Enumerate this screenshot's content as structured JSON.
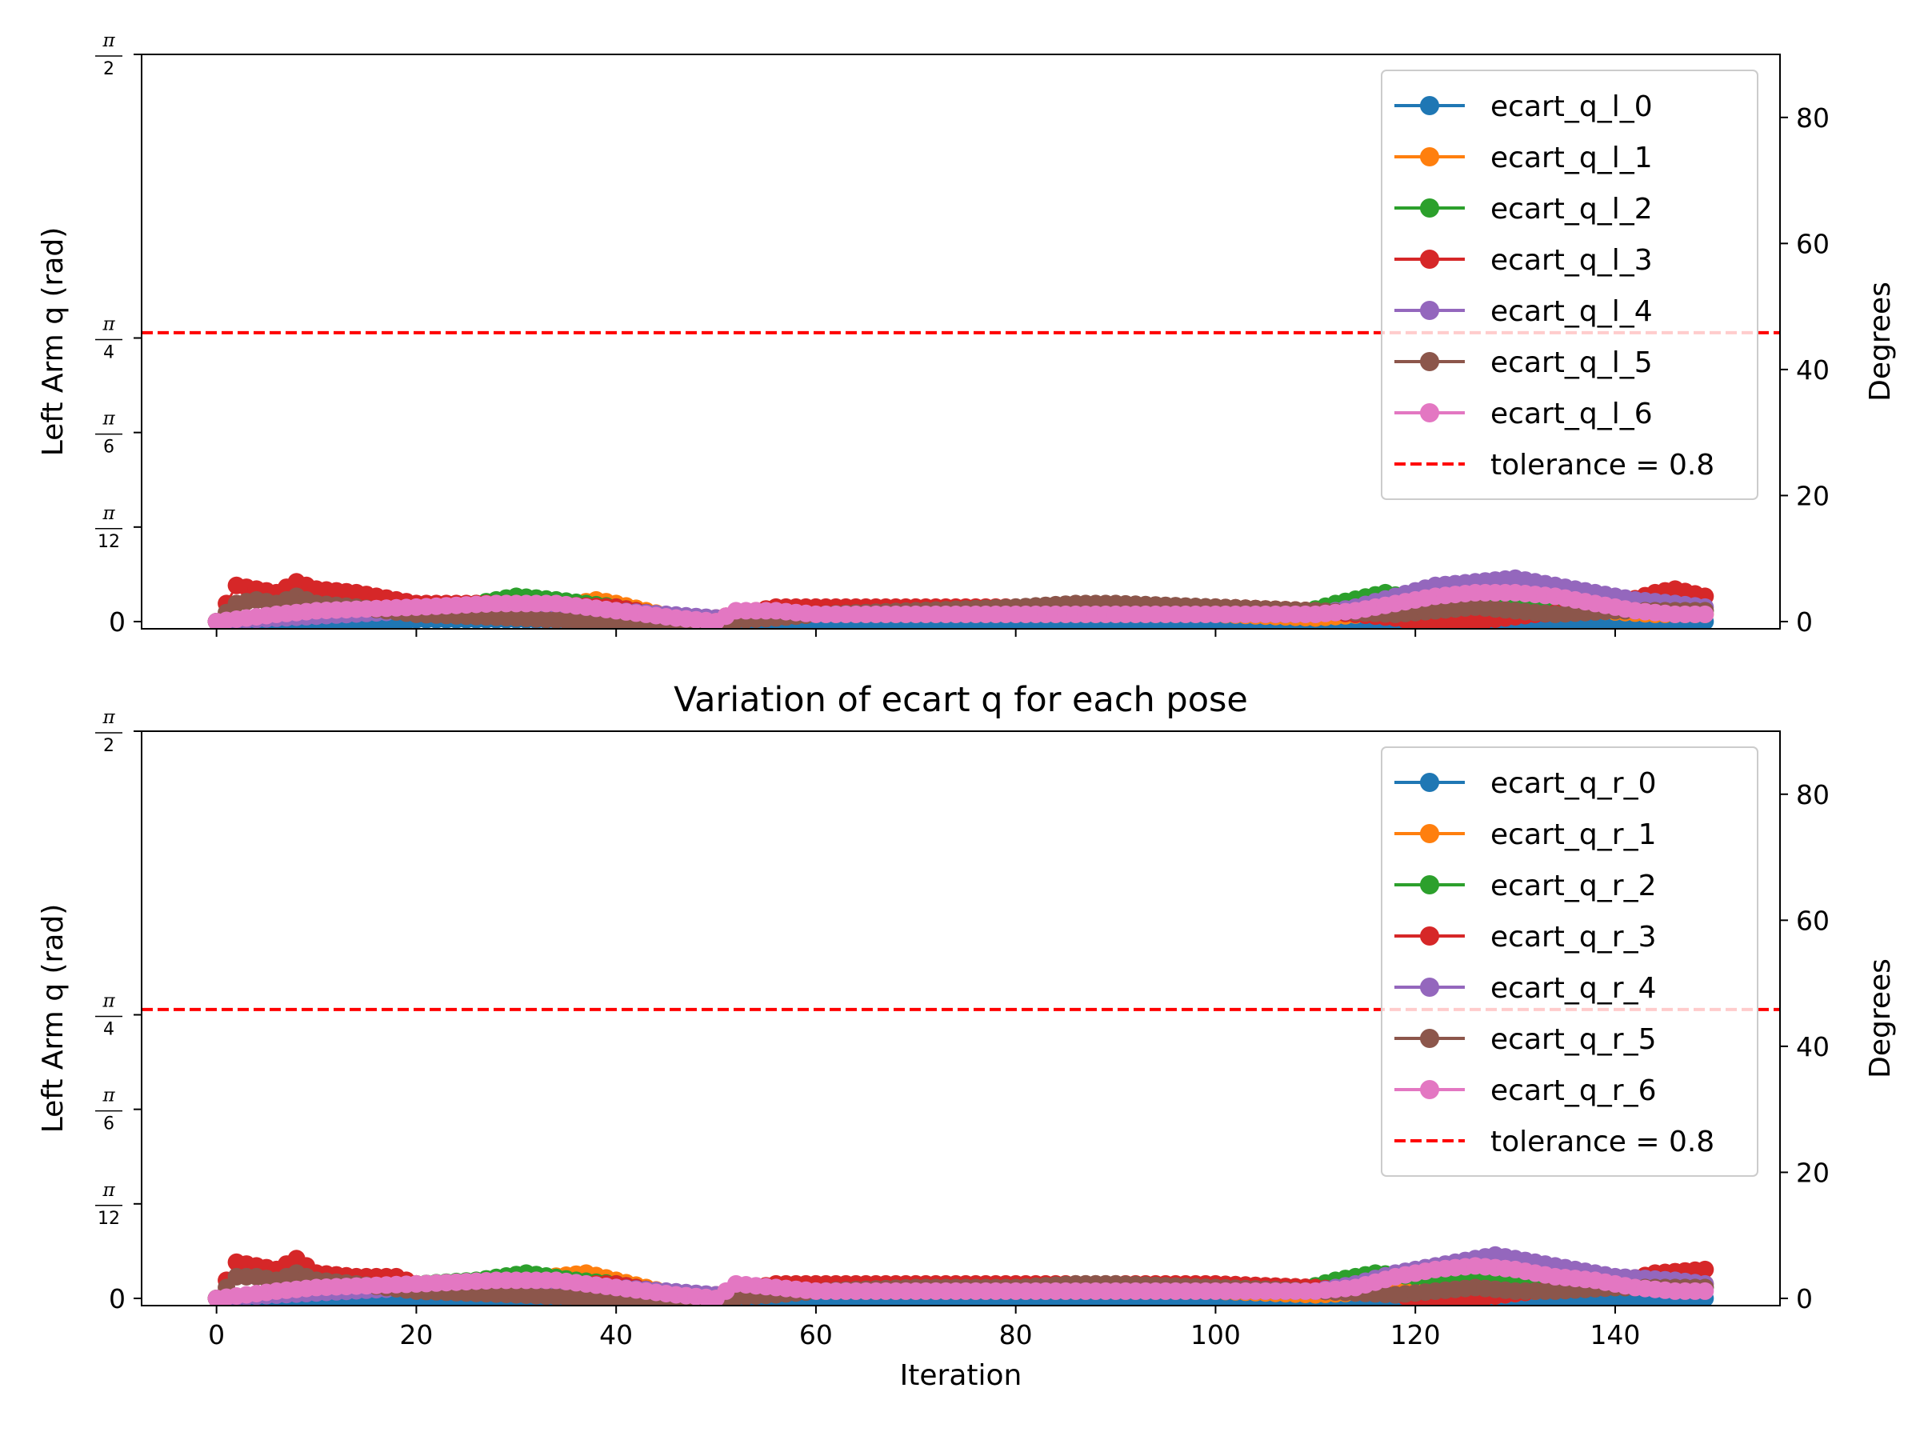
{
  "chart_data": [
    {
      "type": "line",
      "title": "",
      "xlabel": "",
      "ylabel": "Left Arm q (rad)",
      "ylabel_right": "Degrees",
      "xlim": [
        -7.5,
        156.5
      ],
      "ylim": [
        -0.02,
        1.5708
      ],
      "ylim_right_deg": [
        -1.146,
        90
      ],
      "x_ticks": [
        0,
        20,
        40,
        60,
        80,
        100,
        120,
        140
      ],
      "x_tick_labels_visible": false,
      "y_ticks": [
        {
          "value": 0,
          "label": "0"
        },
        {
          "value": 0.2618,
          "num": "π",
          "den": "12"
        },
        {
          "value": 0.5236,
          "num": "π",
          "den": "6"
        },
        {
          "value": 0.7854,
          "num": "π",
          "den": "4"
        },
        {
          "value": 1.5708,
          "num": "π",
          "den": "2"
        }
      ],
      "y_right_ticks": [
        0,
        20,
        40,
        60,
        80
      ],
      "tolerance": {
        "label": "tolerance = 0.8",
        "value": 0.8,
        "color": "#ff0000"
      },
      "legend_position": "top-right",
      "grid": false,
      "x_range": [
        0,
        149
      ],
      "series": [
        {
          "name": "ecart_q_l_0",
          "color": "#1f77b4",
          "x": [
            0,
            10,
            16,
            20,
            30,
            40,
            46,
            50,
            60,
            80,
            100,
            110,
            120,
            126,
            132,
            138,
            144,
            149
          ],
          "y": [
            0,
            0,
            -0.015,
            0.005,
            0.005,
            0,
            -0.01,
            -0.01,
            -0.015,
            -0.015,
            -0.012,
            -0.012,
            0,
            0,
            -0.012,
            -0.005,
            -0.005,
            0
          ]
        },
        {
          "name": "ecart_q_l_1",
          "color": "#ff7f0e",
          "x": [
            0,
            10,
            20,
            30,
            36,
            38,
            40,
            46,
            50,
            60,
            80,
            100,
            110,
            120,
            126,
            132,
            138,
            144,
            149
          ],
          "y": [
            0,
            0.02,
            0.04,
            0.05,
            0.05,
            0.06,
            0.05,
            0.01,
            0,
            0.02,
            0.02,
            0.02,
            0.01,
            0.03,
            0.04,
            0.04,
            0.03,
            0.02,
            0.02
          ]
        },
        {
          "name": "ecart_q_l_2",
          "color": "#2ca02c",
          "x": [
            0,
            10,
            20,
            26,
            30,
            34,
            40,
            46,
            50,
            60,
            80,
            100,
            108,
            112,
            117,
            120,
            126,
            132,
            138,
            144,
            149
          ],
          "y": [
            0,
            0.02,
            0.04,
            0.05,
            0.07,
            0.06,
            0.04,
            0.01,
            0,
            0.02,
            0.02,
            0.02,
            0.02,
            0.05,
            0.08,
            0.06,
            0.05,
            0.04,
            0.03,
            0.03,
            0.03
          ]
        },
        {
          "name": "ecart_q_l_3",
          "color": "#d62728",
          "x": [
            0,
            2,
            4,
            6,
            8,
            10,
            14,
            18,
            20,
            30,
            40,
            46,
            50,
            56,
            60,
            80,
            100,
            110,
            118,
            122,
            126,
            132,
            138,
            144,
            146,
            149
          ],
          "y": [
            0,
            0.1,
            0.09,
            0.08,
            0.11,
            0.09,
            0.08,
            0.06,
            0.05,
            0.05,
            0.04,
            0.01,
            0.01,
            0.04,
            0.04,
            0.04,
            0.04,
            0.03,
            0.01,
            -0.01,
            0,
            0.02,
            0.03,
            0.08,
            0.09,
            0.07
          ]
        },
        {
          "name": "ecart_q_l_4",
          "color": "#9467bd",
          "x": [
            0,
            20,
            40,
            50,
            60,
            80,
            100,
            110,
            114,
            118,
            122,
            126,
            130,
            134,
            138,
            142,
            146,
            149
          ],
          "y": [
            0,
            0.03,
            0.03,
            0.01,
            0.02,
            0.02,
            0.02,
            0.02,
            0.04,
            0.07,
            0.1,
            0.11,
            0.12,
            0.1,
            0.08,
            0.06,
            0.05,
            0.04
          ]
        },
        {
          "name": "ecart_q_l_5",
          "color": "#8c564b",
          "x": [
            0,
            2,
            4,
            6,
            8,
            10,
            14,
            20,
            30,
            38,
            44,
            50,
            56,
            60,
            70,
            80,
            86,
            90,
            100,
            110,
            118,
            122,
            126,
            130,
            134,
            140,
            149
          ],
          "y": [
            0,
            0.05,
            0.06,
            0.05,
            0.07,
            0.05,
            0.04,
            0.02,
            0.01,
            0,
            -0.01,
            0,
            0.01,
            0.02,
            0.03,
            0.04,
            0.05,
            0.05,
            0.04,
            0.03,
            0.02,
            0.03,
            0.04,
            0.03,
            0.02,
            0.03,
            0.03
          ]
        },
        {
          "name": "ecart_q_l_6",
          "color": "#e377c2",
          "x": [
            0,
            6,
            10,
            20,
            28,
            34,
            40,
            46,
            50,
            52,
            56,
            60,
            80,
            100,
            110,
            114,
            118,
            122,
            126,
            130,
            134,
            138,
            142,
            146,
            149
          ],
          "y": [
            0,
            0.02,
            0.03,
            0.04,
            0.05,
            0.05,
            0.03,
            0.01,
            0,
            0.03,
            0.03,
            0.02,
            0.02,
            0.02,
            0.02,
            0.03,
            0.05,
            0.07,
            0.08,
            0.08,
            0.07,
            0.05,
            0.03,
            0.02,
            0.02
          ]
        }
      ]
    },
    {
      "type": "line",
      "title": "Variation of ecart q for each pose",
      "xlabel": "Iteration",
      "ylabel": "Left Arm q (rad)",
      "ylabel_right": "Degrees",
      "xlim": [
        -7.5,
        156.5
      ],
      "ylim": [
        -0.02,
        1.5708
      ],
      "ylim_right_deg": [
        -1.146,
        90
      ],
      "x_ticks": [
        0,
        20,
        40,
        60,
        80,
        100,
        120,
        140
      ],
      "x_tick_labels_visible": true,
      "y_ticks": [
        {
          "value": 0,
          "label": "0"
        },
        {
          "value": 0.2618,
          "num": "π",
          "den": "12"
        },
        {
          "value": 0.5236,
          "num": "π",
          "den": "6"
        },
        {
          "value": 0.7854,
          "num": "π",
          "den": "4"
        },
        {
          "value": 1.5708,
          "num": "π",
          "den": "2"
        }
      ],
      "y_right_ticks": [
        0,
        20,
        40,
        60,
        80
      ],
      "tolerance": {
        "label": "tolerance = 0.8",
        "value": 0.8,
        "color": "#ff0000"
      },
      "legend_position": "top-right",
      "grid": false,
      "x_range": [
        0,
        149
      ],
      "series": [
        {
          "name": "ecart_q_r_0",
          "color": "#1f77b4",
          "x": [
            0,
            10,
            20,
            30,
            40,
            50,
            60,
            80,
            100,
            110,
            120,
            126,
            132,
            140,
            149
          ],
          "y": [
            0,
            0,
            0,
            0,
            -0.005,
            -0.01,
            -0.01,
            -0.01,
            -0.01,
            -0.01,
            -0.005,
            -0.01,
            -0.01,
            0,
            0
          ]
        },
        {
          "name": "ecart_q_r_1",
          "color": "#ff7f0e",
          "x": [
            0,
            10,
            20,
            30,
            37,
            40,
            46,
            50,
            60,
            80,
            100,
            110,
            118,
            122,
            126,
            132,
            138,
            144,
            149
          ],
          "y": [
            0,
            0.02,
            0.04,
            0.05,
            0.07,
            0.05,
            0.01,
            0,
            0.02,
            0.02,
            0.02,
            0.01,
            0.02,
            0.03,
            0,
            0.02,
            0.03,
            0.04,
            0.04
          ]
        },
        {
          "name": "ecart_q_r_2",
          "color": "#2ca02c",
          "x": [
            0,
            10,
            20,
            26,
            31,
            36,
            40,
            46,
            50,
            60,
            80,
            100,
            108,
            112,
            116,
            120,
            126,
            132,
            138,
            144,
            149
          ],
          "y": [
            0,
            0.02,
            0.04,
            0.05,
            0.07,
            0.05,
            0.04,
            0.01,
            0,
            0.02,
            0.02,
            0.02,
            0.02,
            0.05,
            0.07,
            0.06,
            0.05,
            0.04,
            0.03,
            0.03,
            0.03
          ]
        },
        {
          "name": "ecart_q_r_3",
          "color": "#d62728",
          "x": [
            0,
            1,
            2,
            4,
            6,
            8,
            10,
            14,
            18,
            20,
            30,
            40,
            46,
            50,
            56,
            60,
            80,
            100,
            110,
            118,
            122,
            126,
            132,
            138,
            144,
            149
          ],
          "y": [
            0,
            0.05,
            0.1,
            0.09,
            0.08,
            0.11,
            0.07,
            0.06,
            0.06,
            0.04,
            0.04,
            0.04,
            0.01,
            0.01,
            0.04,
            0.04,
            0.04,
            0.04,
            0.03,
            0.01,
            -0.01,
            0,
            0.02,
            0.03,
            0.07,
            0.08
          ]
        },
        {
          "name": "ecart_q_r_4",
          "color": "#9467bd",
          "x": [
            0,
            20,
            40,
            50,
            60,
            80,
            100,
            110,
            114,
            118,
            122,
            126,
            128,
            132,
            136,
            140,
            146,
            149
          ],
          "y": [
            0,
            0.03,
            0.03,
            0.01,
            0.02,
            0.02,
            0.02,
            0.02,
            0.04,
            0.07,
            0.09,
            0.11,
            0.12,
            0.1,
            0.08,
            0.06,
            0.05,
            0.04
          ]
        },
        {
          "name": "ecart_q_r_5",
          "color": "#8c564b",
          "x": [
            0,
            2,
            4,
            6,
            8,
            10,
            14,
            20,
            30,
            38,
            44,
            50,
            56,
            60,
            70,
            80,
            86,
            90,
            100,
            110,
            118,
            122,
            126,
            130,
            134,
            140,
            149
          ],
          "y": [
            0,
            0.06,
            0.06,
            0.05,
            0.07,
            0.05,
            0.04,
            0.02,
            0.01,
            0,
            -0.01,
            0,
            0.01,
            0.02,
            0.03,
            0.03,
            0.04,
            0.04,
            0.03,
            0.02,
            0.01,
            0.02,
            0.03,
            0.02,
            0.02,
            0.03,
            0.03
          ]
        },
        {
          "name": "ecart_q_r_6",
          "color": "#e377c2",
          "x": [
            0,
            6,
            10,
            20,
            28,
            34,
            40,
            46,
            50,
            52,
            56,
            60,
            80,
            100,
            110,
            114,
            118,
            122,
            126,
            130,
            134,
            138,
            142,
            146,
            149
          ],
          "y": [
            0,
            0.02,
            0.03,
            0.04,
            0.05,
            0.05,
            0.03,
            0.01,
            0,
            0.04,
            0.03,
            0.02,
            0.02,
            0.02,
            0.02,
            0.03,
            0.06,
            0.08,
            0.09,
            0.08,
            0.06,
            0.05,
            0.03,
            0.02,
            0.02
          ]
        }
      ]
    }
  ]
}
